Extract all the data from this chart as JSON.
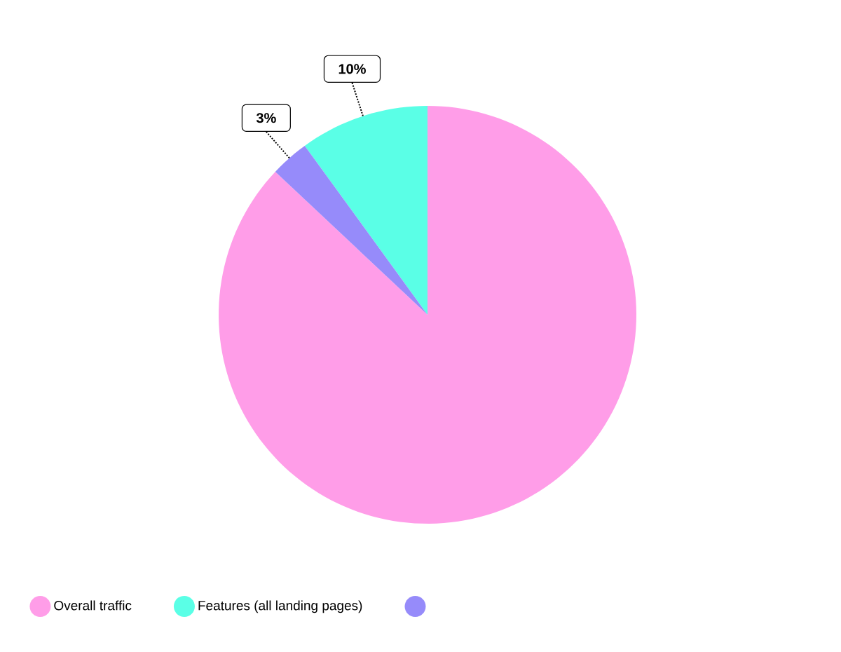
{
  "chart_data": {
    "type": "pie",
    "categories": [
      "Overall traffic",
      "Features (all landing pages)",
      null
    ],
    "values": [
      87,
      10,
      3
    ],
    "colors": [
      "#ff9de8",
      "#5affe6",
      "#968bfa"
    ],
    "value_labels": [
      null,
      "10%",
      "3%"
    ],
    "legend": "bottom"
  }
}
